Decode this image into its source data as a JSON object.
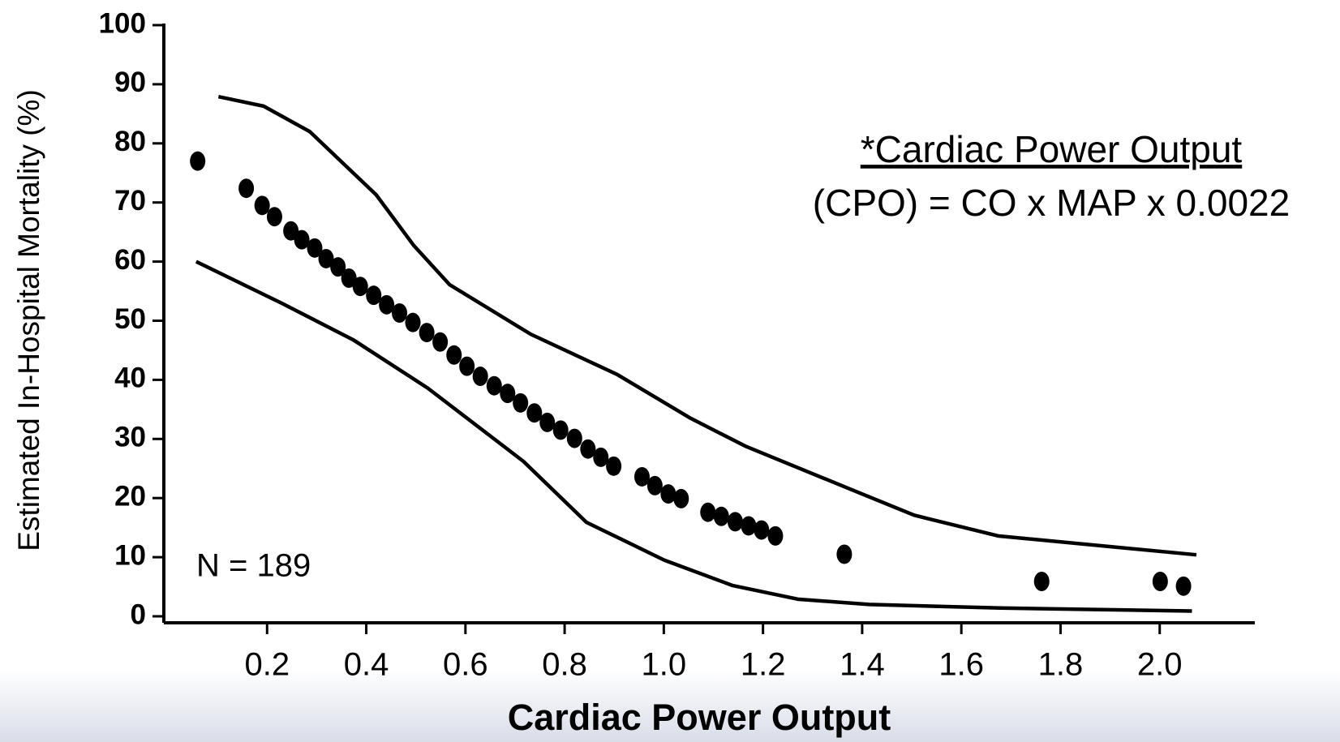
{
  "chart_data": {
    "type": "scatter",
    "x_label": "Cardiac Power Output",
    "y_label": "Estimated In-Hospital Mortality (%)",
    "annotations": [
      "N = 189",
      "*Cardiac Power Output",
      "(CPO) = CO x MAP x 0.0022"
    ],
    "annotation_color": "#1f5fb4",
    "xlim": [
      0,
      2.2
    ],
    "ylim": [
      0,
      100
    ],
    "xticks": [
      0.2,
      0.4,
      0.6,
      0.8,
      {
        "value": 1.0,
        "label": "1.0"
      },
      1.2,
      1.4,
      1.6,
      1.8,
      {
        "value": 2.0,
        "label": "2.0"
      }
    ],
    "yticks": [
      0,
      10,
      20,
      30,
      40,
      50,
      60,
      70,
      80,
      90,
      100
    ],
    "series": [
      {
        "type": "scatter",
        "color": "#000000",
        "x": [
          0.06,
          0.158,
          0.19,
          0.215,
          0.248,
          0.27,
          0.296,
          0.319,
          0.343,
          0.365,
          0.388,
          0.415,
          0.441,
          0.467,
          0.494,
          0.522,
          0.549,
          0.577,
          0.603,
          0.63,
          0.658,
          0.685,
          0.711,
          0.739,
          0.765,
          0.792,
          0.82,
          0.847,
          0.873,
          0.899,
          0.956,
          0.982,
          1.009,
          1.035,
          1.089,
          1.116,
          1.144,
          1.171,
          1.197,
          1.225,
          1.364,
          1.762,
          2.001,
          2.048
        ],
        "values": [
          77.0,
          72.4,
          69.5,
          67.6,
          65.2,
          63.7,
          62.3,
          60.5,
          59.1,
          57.2,
          55.8,
          54.3,
          52.7,
          51.3,
          49.7,
          48.0,
          46.4,
          44.2,
          42.3,
          40.6,
          39.0,
          37.7,
          36.1,
          34.4,
          32.8,
          31.5,
          30.1,
          28.3,
          26.9,
          25.4,
          23.6,
          22.1,
          20.7,
          19.9,
          17.6,
          16.9,
          16.0,
          15.3,
          14.6,
          13.6,
          10.5,
          5.9,
          5.9,
          5.1
        ]
      },
      {
        "type": "line",
        "color": "#000000",
        "x": [
          0.102,
          0.193,
          0.286,
          0.42,
          0.496,
          0.568,
          0.732,
          0.906,
          1.054,
          1.164,
          1.385,
          1.505,
          1.674,
          2.074
        ],
        "values": [
          87.9,
          86.3,
          82.0,
          71.3,
          62.7,
          56.1,
          47.7,
          40.9,
          33.5,
          28.8,
          21.2,
          17.1,
          13.6,
          10.4
        ]
      },
      {
        "type": "line",
        "color": "#000000",
        "x": [
          0.057,
          0.231,
          0.375,
          0.524,
          0.717,
          0.844,
          1.001,
          1.139,
          1.27,
          1.414,
          1.678,
          2.065
        ],
        "values": [
          60.0,
          52.9,
          46.7,
          38.6,
          26.2,
          15.9,
          9.5,
          5.2,
          2.9,
          2.0,
          1.4,
          0.9
        ]
      }
    ]
  }
}
